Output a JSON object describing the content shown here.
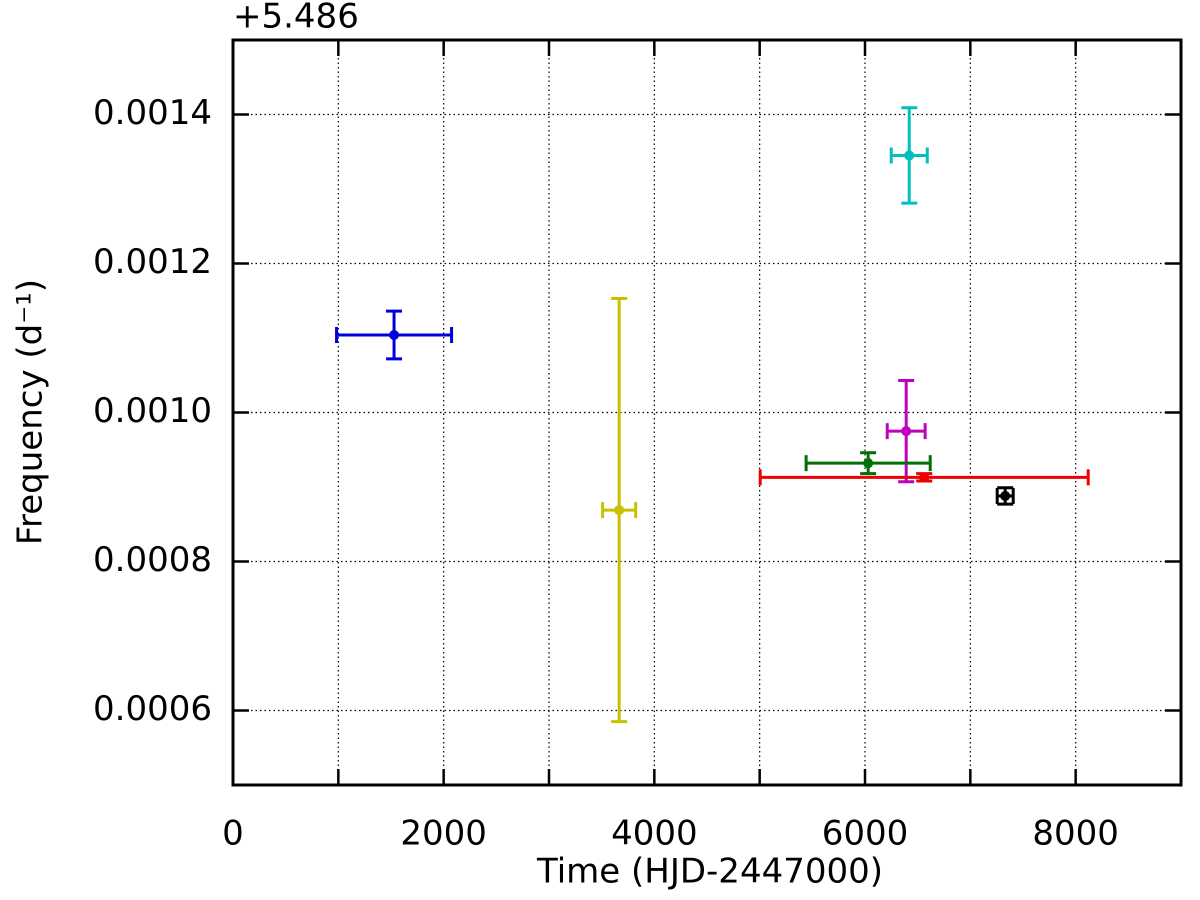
{
  "chart_data": {
    "type": "errorbar",
    "xlabel": "Time (HJD-2447000)",
    "ylabel": "Frequency (d⁻¹)",
    "offset_text": "+5.486",
    "xlim": [
      0,
      9000
    ],
    "ylim": [
      0.0005,
      0.0015
    ],
    "xticks": [
      0,
      2000,
      4000,
      6000,
      8000
    ],
    "xminor_ticks": [
      1000,
      3000,
      5000,
      7000
    ],
    "yticks": [
      0.0006,
      0.0008,
      {
        "value": 0.001,
        "label": "0.0010"
      },
      0.0012,
      0.0014
    ],
    "grid": true,
    "series": [
      {
        "color": "#0000dd",
        "x": [
          1529
        ],
        "values": [
          0.001104
        ],
        "xerr": [
          546
        ],
        "yerr": [
          3.2e-05
        ]
      },
      {
        "color": "#c8c000",
        "x": [
          3666
        ],
        "values": [
          0.000869
        ],
        "xerr": [
          157
        ],
        "yerr": [
          0.000284
        ]
      },
      {
        "color": "#00bfbf",
        "x": [
          6420
        ],
        "values": [
          0.001345
        ],
        "xerr": [
          171
        ],
        "yerr": [
          6.4e-05
        ]
      },
      {
        "color": "#bf00bf",
        "x": [
          6391
        ],
        "values": [
          0.000975
        ],
        "xerr": [
          180
        ],
        "yerr": [
          6.8e-05
        ]
      },
      {
        "color": "#007000",
        "x": [
          6030
        ],
        "values": [
          0.000932
        ],
        "xerr": [
          589
        ],
        "yerr": [
          1.4e-05
        ]
      },
      {
        "color": "#ee0000",
        "x": [
          6562
        ],
        "values": [
          0.000913
        ],
        "xerr": [
          1557
        ],
        "yerr": [
          5e-06
        ]
      },
      {
        "color": "#000000",
        "x": [
          7331
        ],
        "values": [
          0.000888
        ],
        "xerr": [
          76
        ],
        "yerr": [
          1.1e-05
        ]
      }
    ]
  }
}
